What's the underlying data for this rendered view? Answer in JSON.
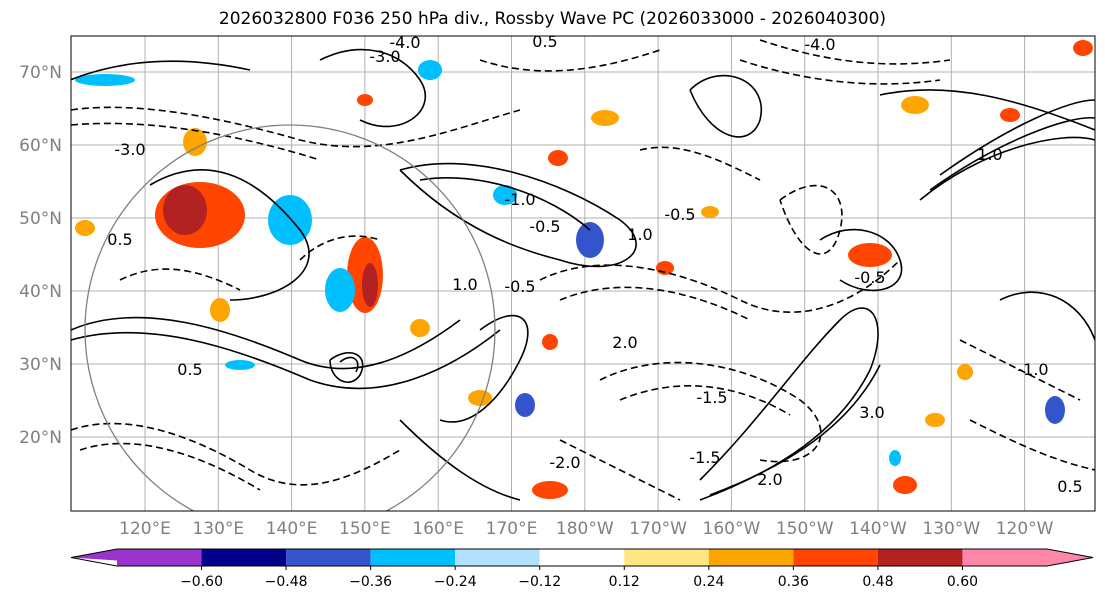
{
  "title": "2026032800 F036 250 hPa div., Rossby Wave PC (2026033000 - 2026040300)",
  "map": {
    "lat_labels": [
      "70°N",
      "60°N",
      "50°N",
      "40°N",
      "30°N",
      "20°N"
    ],
    "lon_labels": [
      "120°E",
      "130°E",
      "140°E",
      "150°E",
      "160°E",
      "170°E",
      "180°W",
      "170°W",
      "160°W",
      "150°W",
      "140°W",
      "130°W",
      "120°W"
    ],
    "contour_labels": [
      "-4.0",
      "-3.0",
      "0.5",
      "-0.5",
      "1.0",
      "-1.0",
      "2.0",
      "-2.0",
      "-1.5",
      "3.0",
      "-0.5",
      "0.5",
      "-1.0",
      "2.0",
      "1.0",
      "-3.0",
      "-4.0",
      "0.5",
      "-0.5",
      "1.0",
      "-1.5",
      "-0.5",
      "0.5"
    ],
    "colors": {
      "coast": "#000000",
      "grid": "#b0b0b0",
      "contour": "#000000"
    }
  },
  "colorbar": {
    "tick_labels": [
      "−0.60",
      "−0.48",
      "−0.36",
      "−0.24",
      "−0.12",
      "0.12",
      "0.24",
      "0.36",
      "0.48",
      "0.60"
    ],
    "colors": [
      "#9933cc",
      "#00008b",
      "#3355cc",
      "#00bfff",
      "#b0e2ff",
      "#ffffff",
      "#ffe680",
      "#ffa500",
      "#ff4500",
      "#b22222",
      "#ff88aa"
    ]
  }
}
